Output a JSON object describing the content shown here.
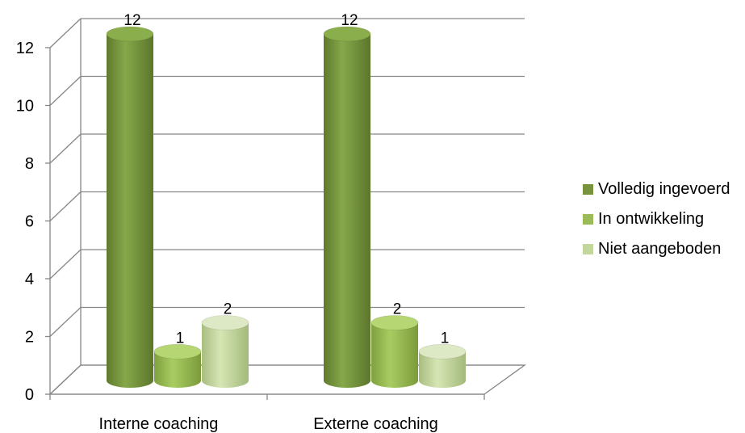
{
  "chart_data": {
    "type": "bar",
    "categories": [
      "Interne coaching",
      "Externe coaching"
    ],
    "series": [
      {
        "name": "Volledig ingevoerd",
        "values": [
          12,
          12
        ],
        "color": "#77933C"
      },
      {
        "name": "In ontwikkeling",
        "values": [
          1,
          2
        ],
        "color": "#9BBB59"
      },
      {
        "name": "Niet aangeboden",
        "values": [
          2,
          1
        ],
        "color": "#C3D69B"
      }
    ],
    "ylim": [
      0,
      12
    ],
    "yticks": [
      0,
      2,
      4,
      6,
      8,
      10,
      12
    ],
    "grid": true,
    "legend": "right",
    "data_labels": true,
    "style": "3d-cylinder"
  }
}
